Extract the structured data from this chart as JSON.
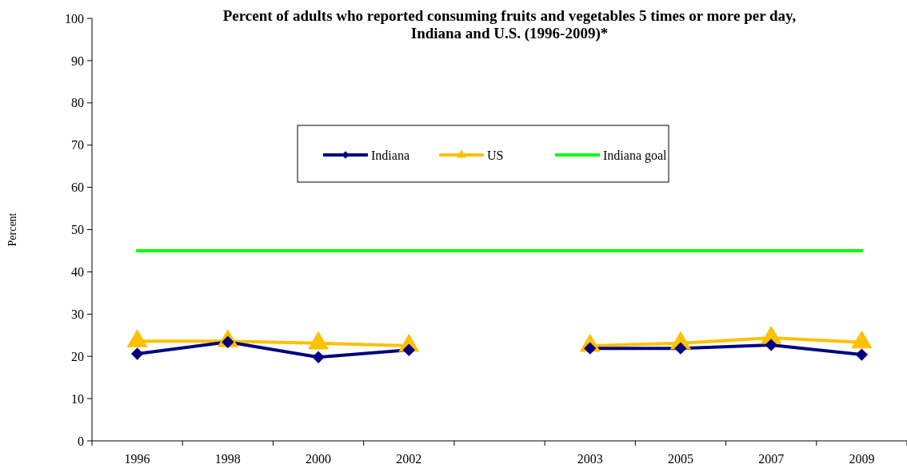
{
  "chart_data": {
    "type": "line",
    "title": "Percent of adults who reported consuming fruits and vegetables 5 times or more per day, Indiana and U.S. (1996-2009)*",
    "ylabel": "Percent",
    "categories": [
      "1996",
      "1998",
      "2000",
      "2002",
      null,
      "2003",
      "2005",
      "2007",
      "2009"
    ],
    "series": [
      {
        "name": "Indiana",
        "color": "#000080",
        "marker": "diamond",
        "values": [
          20.6,
          23.4,
          19.8,
          21.5,
          null,
          21.9,
          21.9,
          22.7,
          20.4
        ]
      },
      {
        "name": "US",
        "color": "#ffc000",
        "marker": "triangle",
        "values": [
          23.6,
          23.6,
          23.1,
          22.5,
          null,
          22.5,
          23.1,
          24.4,
          23.3
        ]
      },
      {
        "name": "Indiana goal",
        "color": "#00ff00",
        "marker": "none",
        "values": [
          45,
          45,
          45,
          45,
          45,
          45,
          45,
          45,
          45
        ]
      }
    ],
    "ylim": [
      0,
      100
    ],
    "yticks": [
      0,
      10,
      20,
      30,
      40,
      50,
      60,
      70,
      80,
      90,
      100
    ],
    "grid": false,
    "legend": "top"
  }
}
